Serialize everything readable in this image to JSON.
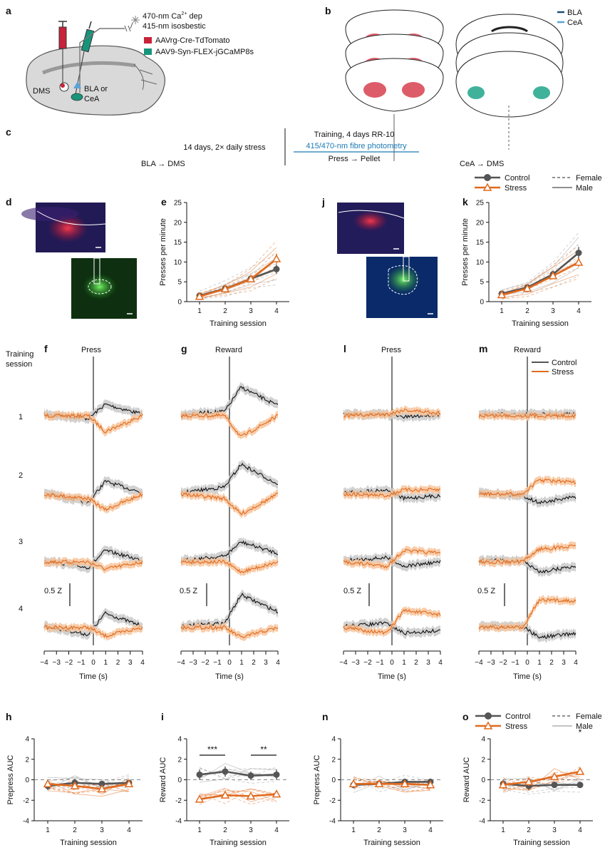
{
  "colors": {
    "control": "#555555",
    "stress": "#e06a1f",
    "control_trace": "#111111",
    "control_band": "#c9c9c9",
    "stress_band": "#f7c49b",
    "aavrg": "#c8233a",
    "aav9": "#17957a",
    "bla": "#1f4e79",
    "cea": "#5aa3d6",
    "link": "#1a7ab5"
  },
  "panel_letters": {
    "a": "a",
    "b": "b",
    "c": "c",
    "d": "d",
    "e": "e",
    "f": "f",
    "g": "g",
    "h": "h",
    "i": "i",
    "j": "j",
    "k": "k",
    "l": "l",
    "m": "m",
    "n": "n",
    "o": "o"
  },
  "panel_a": {
    "light_line1": "470-nm Ca",
    "light_sup": "2+",
    "light_line1_end": " dep",
    "light_line2": "415-nm isosbestic",
    "virus1": "AAVrg-Cre-TdTomato",
    "virus2": "AAV9-Syn-FLEX-jGCaMP8s",
    "dms": "DMS",
    "target1": "BLA or",
    "target2": "CeA"
  },
  "panel_b": {
    "legend1": "BLA",
    "legend2": "CeA"
  },
  "panel_c": {
    "stress": "14 days, 2× daily stress",
    "training": "Training, 4 days RR-10",
    "photometry": "415/470-nm fibre photometry",
    "press_pellet": "Press → Pellet",
    "left_label": "BLA → DMS",
    "right_label": "CeA → DMS"
  },
  "legend_top": {
    "control": "Control",
    "stress": "Stress",
    "female": "Female",
    "male": "Male"
  },
  "legend_traces": {
    "control": "Control",
    "stress": "Stress"
  },
  "training_label": {
    "line1": "Training",
    "line2": "session"
  },
  "session_labels": [
    "1",
    "2",
    "3",
    "4"
  ],
  "scale_bar_label": "0.5 Z",
  "trace_titles": {
    "f": "Press",
    "g": "Reward",
    "l": "Press",
    "m": "Reward"
  },
  "time_axis": {
    "label": "Time (s)",
    "ticks": [
      "−4",
      "−3",
      "−2",
      "−1",
      "0",
      "1",
      "2",
      "3",
      "4"
    ]
  },
  "significance": {
    "i_left": "***",
    "i_right": "**",
    "o": "*"
  },
  "chart_data": [
    {
      "id": "e",
      "type": "line",
      "xlabel": "Training session",
      "ylabel": "Presses per minute",
      "x": [
        1,
        2,
        3,
        4
      ],
      "ylim": [
        0,
        25
      ],
      "yticks": [
        0,
        5,
        10,
        15,
        20,
        25
      ],
      "series": [
        {
          "name": "Control",
          "values": [
            1.5,
            3.3,
            5.8,
            8.2
          ],
          "err": [
            0.3,
            0.6,
            0.6,
            1.2
          ]
        },
        {
          "name": "Stress",
          "values": [
            1.3,
            3.2,
            5.7,
            10.8
          ],
          "err": [
            0.3,
            0.5,
            0.5,
            1.3
          ]
        }
      ]
    },
    {
      "id": "k",
      "type": "line",
      "xlabel": "Training session",
      "ylabel": "Presses per minute",
      "x": [
        1,
        2,
        3,
        4
      ],
      "ylim": [
        0,
        25
      ],
      "yticks": [
        0,
        5,
        10,
        15,
        20,
        25
      ],
      "series": [
        {
          "name": "Control",
          "values": [
            2.0,
            3.6,
            6.9,
            12.3
          ],
          "err": [
            0.3,
            0.6,
            0.9,
            1.5
          ]
        },
        {
          "name": "Stress",
          "values": [
            1.7,
            3.3,
            6.5,
            9.9
          ],
          "err": [
            0.3,
            0.5,
            0.8,
            1.1
          ]
        }
      ]
    },
    {
      "id": "h",
      "type": "line",
      "xlabel": "Training session",
      "ylabel": "Prepress AUC",
      "x": [
        1,
        2,
        3,
        4
      ],
      "ylim": [
        -4,
        4
      ],
      "yticks": [
        -4,
        -2,
        0,
        2,
        4
      ],
      "series": [
        {
          "name": "Control",
          "values": [
            -0.6,
            -0.3,
            -0.4,
            -0.3
          ],
          "err": [
            0.4,
            0.4,
            0.3,
            0.3
          ]
        },
        {
          "name": "Stress",
          "values": [
            -0.4,
            -0.6,
            -0.9,
            -0.4
          ],
          "err": [
            0.3,
            0.3,
            0.3,
            0.3
          ]
        }
      ]
    },
    {
      "id": "i",
      "type": "line",
      "xlabel": "Training session",
      "ylabel": "Reward AUC",
      "x": [
        1,
        2,
        3,
        4
      ],
      "ylim": [
        -4,
        4
      ],
      "yticks": [
        -4,
        -2,
        0,
        2,
        4
      ],
      "series": [
        {
          "name": "Control",
          "values": [
            0.5,
            0.8,
            0.4,
            0.5
          ],
          "err": [
            0.5,
            0.5,
            0.4,
            0.5
          ]
        },
        {
          "name": "Stress",
          "values": [
            -1.9,
            -1.5,
            -1.6,
            -1.4
          ],
          "err": [
            0.3,
            0.3,
            0.3,
            0.3
          ]
        }
      ]
    },
    {
      "id": "n",
      "type": "line",
      "xlabel": "Training session",
      "ylabel": "Prepress AUC",
      "x": [
        1,
        2,
        3,
        4
      ],
      "ylim": [
        -4,
        4
      ],
      "yticks": [
        -4,
        -2,
        0,
        2,
        4
      ],
      "series": [
        {
          "name": "Control",
          "values": [
            -0.5,
            -0.4,
            -0.2,
            -0.2
          ],
          "err": [
            0.3,
            0.3,
            0.3,
            0.3
          ]
        },
        {
          "name": "Stress",
          "values": [
            -0.4,
            -0.4,
            -0.4,
            -0.5
          ],
          "err": [
            0.2,
            0.2,
            0.2,
            0.2
          ]
        }
      ]
    },
    {
      "id": "o",
      "type": "line",
      "xlabel": "Training session",
      "ylabel": "Reward AUC",
      "x": [
        1,
        2,
        3,
        4
      ],
      "ylim": [
        -4,
        4
      ],
      "yticks": [
        -4,
        -2,
        0,
        2,
        4
      ],
      "series": [
        {
          "name": "Control",
          "values": [
            -0.4,
            -0.6,
            -0.5,
            -0.5
          ],
          "err": [
            0.4,
            0.4,
            0.3,
            0.3
          ]
        },
        {
          "name": "Stress",
          "values": [
            -0.5,
            -0.2,
            0.3,
            0.8
          ],
          "err": [
            0.4,
            0.4,
            0.3,
            0.3
          ]
        }
      ]
    }
  ]
}
